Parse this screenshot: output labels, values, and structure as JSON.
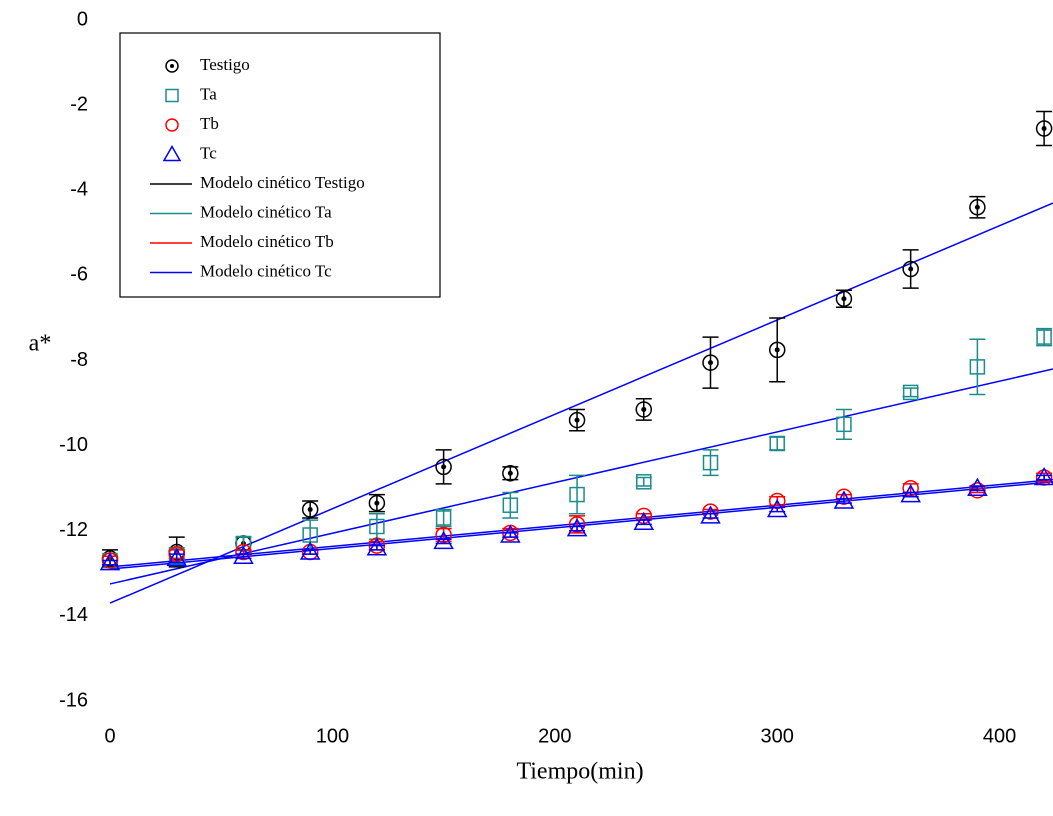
{
  "chart_data": {
    "type": "scatter",
    "x_label": "Tiempo(min)",
    "y_label": "a*",
    "xlim": [
      0,
      424
    ],
    "ylim": [
      -16,
      0
    ],
    "xticks": [
      0,
      100,
      200,
      300,
      400
    ],
    "yticks": [
      0,
      -2,
      -4,
      -6,
      -8,
      -10,
      -12,
      -14,
      -16
    ],
    "x": [
      0,
      30,
      60,
      90,
      120,
      150,
      180,
      210,
      240,
      270,
      300,
      330,
      360,
      390,
      420
    ],
    "fit_line_color": "#0000ff",
    "legend": "upper left",
    "series": [
      {
        "name": "Testigo",
        "color": "#000000",
        "marker": "dotted-circle",
        "values": [
          -12.65,
          -12.5,
          -12.3,
          -11.5,
          -11.35,
          -10.5,
          -10.65,
          -9.4,
          -9.15,
          -8.05,
          -7.75,
          -6.55,
          -5.85,
          -4.4,
          -2.55
        ],
        "errors": [
          0.2,
          0.35,
          0.15,
          0.2,
          0.2,
          0.4,
          0.15,
          0.25,
          0.25,
          0.6,
          0.75,
          0.2,
          0.45,
          0.25,
          0.4
        ]
      },
      {
        "name": "Ta",
        "color": "#1a8c8c",
        "marker": "square",
        "values": [
          -12.7,
          -12.6,
          -12.3,
          -12.1,
          -11.9,
          -11.7,
          -11.4,
          -11.15,
          -10.85,
          -10.4,
          -9.95,
          -9.5,
          -8.75,
          -8.15,
          -7.45
        ],
        "errors": [
          0.1,
          0.2,
          0.15,
          0.35,
          0.3,
          0.2,
          0.3,
          0.45,
          0.1,
          0.3,
          0.15,
          0.35,
          0.1,
          0.65,
          0.2
        ]
      },
      {
        "name": "Tb",
        "color": "#ff0000",
        "marker": "circle",
        "values": [
          -12.7,
          -12.55,
          -12.5,
          -12.5,
          -12.35,
          -12.1,
          -12.05,
          -11.85,
          -11.65,
          -11.55,
          -11.3,
          -11.2,
          -11.0,
          -11.05,
          -10.75
        ],
        "errors": [
          0.1,
          0.1,
          0.05,
          0.05,
          0.1,
          0.15,
          0.1,
          0.2,
          0.05,
          0.05,
          0.1,
          0.05,
          0.1,
          0.05,
          0.1
        ]
      },
      {
        "name": "Tc",
        "color": "#0000ff",
        "marker": "triangle",
        "values": [
          -12.75,
          -12.65,
          -12.6,
          -12.5,
          -12.4,
          -12.25,
          -12.1,
          -11.95,
          -11.8,
          -11.65,
          -11.5,
          -11.3,
          -11.15,
          -11.0,
          -10.75
        ],
        "errors": [
          0.05,
          0.1,
          0.05,
          0.05,
          0.05,
          0.05,
          0.05,
          0.05,
          0.05,
          0.05,
          0.05,
          0.05,
          0.05,
          0.05,
          0.05
        ]
      },
      {
        "name": "Modelo cinético Testigo",
        "color": "#000000",
        "type": "line",
        "x": [
          0,
          424
        ],
        "values": [
          -13.7,
          -4.3
        ]
      },
      {
        "name": "Modelo cinético Ta",
        "color": "#1a8c8c",
        "type": "line",
        "x": [
          0,
          424
        ],
        "values": [
          -13.25,
          -8.2
        ]
      },
      {
        "name": "Modelo cinético Tb",
        "color": "#ff0000",
        "type": "line",
        "x": [
          0,
          424
        ],
        "values": [
          -12.9,
          -10.85
        ]
      },
      {
        "name": "Modelo cinético Tc",
        "color": "#0000ff",
        "type": "line",
        "x": [
          0,
          424
        ],
        "values": [
          -12.85,
          -10.8
        ]
      }
    ]
  }
}
